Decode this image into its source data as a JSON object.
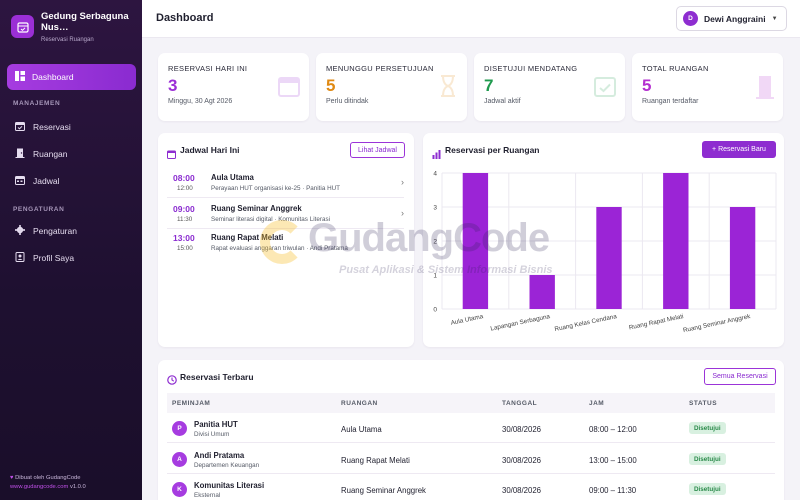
{
  "sidebar": {
    "app_title": "Gedung Serbaguna Nus…",
    "app_subtitle": "Reservasi Ruangan",
    "active_item": "Dashboard",
    "section_manajemen": "MANAJEMEN",
    "items_manajemen": [
      "Reservasi",
      "Ruangan",
      "Jadwal"
    ],
    "section_pengaturan": "PENGATURAN",
    "items_pengaturan": [
      "Pengaturan",
      "Profil Saya"
    ],
    "footer_line1": "Dibuat oleh GudangCode",
    "footer_url": "www.gudangcode.com",
    "footer_version": "v1.0.0"
  },
  "header": {
    "title": "Dashboard",
    "user_initial": "D",
    "user_name": "Dewi Anggraini"
  },
  "stats": [
    {
      "label": "RESERVASI HARI INI",
      "value": "3",
      "note": "Minggu, 30 Agt 2026",
      "color": "#9b2fd6",
      "icon": "calendar-icon"
    },
    {
      "label": "MENUNGGU PERSETUJUAN",
      "value": "5",
      "note": "Perlu ditindak",
      "color": "#e08a14",
      "icon": "hourglass-icon"
    },
    {
      "label": "DISETUJUI MENDATANG",
      "value": "7",
      "note": "Jadwal aktif",
      "color": "#1f9a4e",
      "icon": "calendar-check-icon"
    },
    {
      "label": "TOTAL RUANGAN",
      "value": "5",
      "note": "Ruangan terdaftar",
      "color": "#b530d0",
      "icon": "door-icon"
    }
  ],
  "schedule": {
    "title": "Jadwal Hari Ini",
    "button": "Lihat Jadwal",
    "items": [
      {
        "start": "08:00",
        "end": "12:00",
        "room": "Aula Utama",
        "desc": "Perayaan HUT organisasi ke-25 · Panitia HUT",
        "color": "#8e2dd0"
      },
      {
        "start": "09:00",
        "end": "11:30",
        "room": "Ruang Seminar Anggrek",
        "desc": "Seminar literasi digital · Komunitas Literasi",
        "color": "#8e2dd0"
      },
      {
        "start": "13:00",
        "end": "15:00",
        "room": "Ruang Rapat Melati",
        "desc": "Rapat evaluasi anggaran triwulan · Andi Pratama",
        "color": "#8e2dd0"
      }
    ]
  },
  "chart_panel": {
    "title": "Reservasi per Ruangan",
    "button": "+ Reservasi Baru"
  },
  "chart_data": {
    "type": "bar",
    "categories": [
      "Aula Utama",
      "Lapangan Serbaguna",
      "Ruang Kelas Cendana",
      "Ruang Rapat Melati",
      "Ruang Seminar Anggrek"
    ],
    "values": [
      4,
      1,
      3,
      4,
      3
    ],
    "yticks": [
      "0",
      "1",
      "2",
      "3",
      "4"
    ],
    "ylim": [
      0,
      4
    ],
    "bar_color": "#9b24d6",
    "grid": true
  },
  "recent": {
    "title": "Reservasi Terbaru",
    "button": "Semua Reservasi",
    "columns": [
      "PEMINJAM",
      "RUANGAN",
      "TANGGAL",
      "JAM",
      "STATUS"
    ],
    "rows": [
      {
        "initial": "P",
        "name": "Panitia HUT",
        "dept": "Divisi Umum",
        "room": "Aula Utama",
        "date": "30/08/2026",
        "time": "08:00 – 12:00",
        "status": "Disetujui"
      },
      {
        "initial": "A",
        "name": "Andi Pratama",
        "dept": "Departemen Keuangan",
        "room": "Ruang Rapat Melati",
        "date": "30/08/2026",
        "time": "13:00 – 15:00",
        "status": "Disetujui"
      },
      {
        "initial": "K",
        "name": "Komunitas Literasi",
        "dept": "Eksternal",
        "room": "Ruang Seminar Anggrek",
        "date": "30/08/2026",
        "time": "09:00 – 11:30",
        "status": "Disetujui"
      }
    ]
  },
  "watermark": {
    "title": "GudangCode",
    "subtitle": "Pusat Aplikasi & Sistem Informasi Bisnis"
  }
}
